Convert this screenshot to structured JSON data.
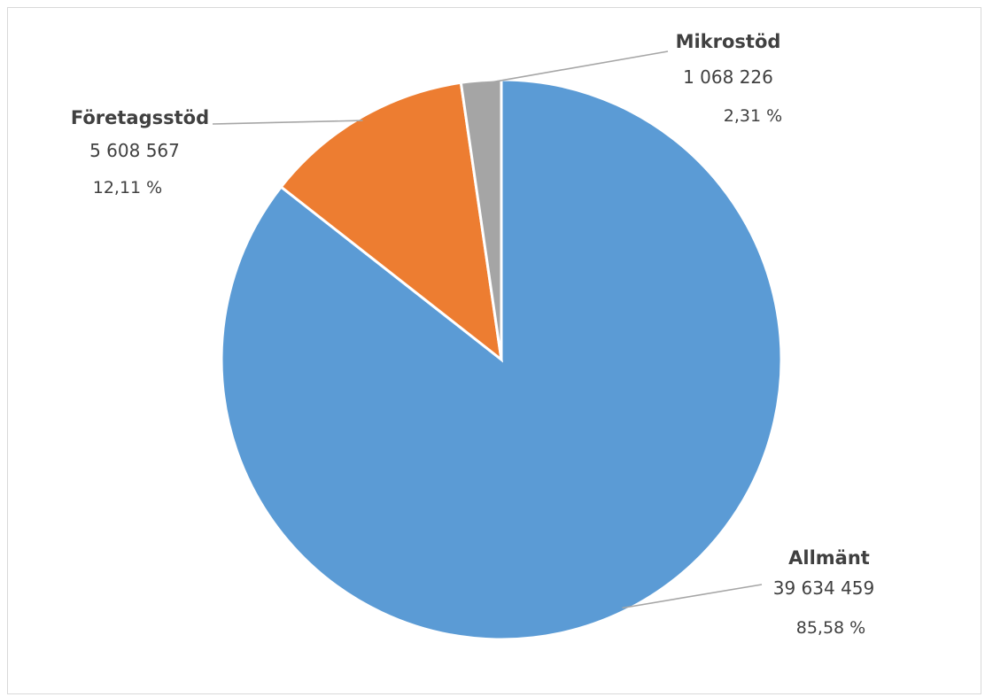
{
  "chart_data": {
    "type": "pie",
    "title": "",
    "start_angle_deg": 0,
    "direction": "clockwise",
    "slices": [
      {
        "name": "Allmänt",
        "value": 39634459,
        "value_label": "39 634 459",
        "percent_label": "85,58 %",
        "color": "#5B9BD5"
      },
      {
        "name": "Företagsstöd",
        "value": 5608567,
        "value_label": "5 608 567",
        "percent_label": "12,11 %",
        "color": "#ED7D31"
      },
      {
        "name": "Mikrostöd",
        "value": 1068226,
        "value_label": "1 068 226",
        "percent_label": "2,31 %",
        "color": "#A5A5A5"
      }
    ],
    "legend": "none"
  }
}
